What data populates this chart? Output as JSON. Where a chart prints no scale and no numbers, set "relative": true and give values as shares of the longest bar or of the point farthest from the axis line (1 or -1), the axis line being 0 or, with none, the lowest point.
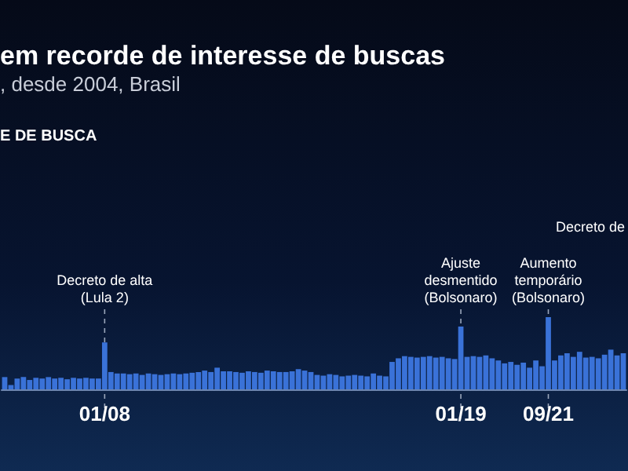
{
  "chart_data": {
    "type": "bar",
    "title": "em recorde de interesse de buscas",
    "subtitle": ", desde 2004, Brasil",
    "relative": true,
    "color": "#3a72d8",
    "grid": false,
    "categories": [
      null,
      null,
      null,
      null,
      null,
      null,
      null,
      null,
      null,
      null,
      null,
      null,
      null,
      null,
      null,
      null,
      "01/08",
      null,
      null,
      null,
      null,
      null,
      null,
      null,
      null,
      null,
      null,
      null,
      null,
      null,
      null,
      null,
      null,
      null,
      null,
      null,
      null,
      null,
      null,
      null,
      null,
      null,
      null,
      null,
      null,
      null,
      null,
      null,
      null,
      null,
      null,
      null,
      null,
      null,
      null,
      null,
      null,
      null,
      null,
      null,
      null,
      null,
      null,
      null,
      null,
      null,
      null,
      null,
      null,
      null,
      null,
      null,
      null,
      "01/19",
      null,
      null,
      null,
      null,
      null,
      null,
      null,
      null,
      null,
      null,
      null,
      null,
      null,
      "09/21",
      null,
      null,
      null,
      null,
      null,
      null,
      null,
      null,
      null,
      null,
      null,
      null
    ],
    "values": [
      0.17,
      0.06,
      0.15,
      0.17,
      0.13,
      0.16,
      0.15,
      0.17,
      0.15,
      0.16,
      0.14,
      0.16,
      0.15,
      0.16,
      0.15,
      0.15,
      0.65,
      0.24,
      0.22,
      0.22,
      0.21,
      0.22,
      0.2,
      0.22,
      0.21,
      0.2,
      0.21,
      0.22,
      0.21,
      0.22,
      0.23,
      0.24,
      0.26,
      0.24,
      0.3,
      0.25,
      0.25,
      0.24,
      0.23,
      0.25,
      0.24,
      0.23,
      0.26,
      0.25,
      0.24,
      0.24,
      0.25,
      0.28,
      0.26,
      0.24,
      0.2,
      0.19,
      0.21,
      0.2,
      0.18,
      0.19,
      0.2,
      0.19,
      0.18,
      0.22,
      0.19,
      0.18,
      0.38,
      0.43,
      0.46,
      0.45,
      0.44,
      0.45,
      0.46,
      0.44,
      0.45,
      0.43,
      0.42,
      0.87,
      0.45,
      0.46,
      0.45,
      0.47,
      0.43,
      0.4,
      0.36,
      0.38,
      0.34,
      0.37,
      0.3,
      0.4,
      0.32,
      1,
      0.4,
      0.47,
      0.5,
      0.45,
      0.52,
      0.44,
      0.45,
      0.43,
      0.48,
      0.55,
      0.47,
      0.5
    ],
    "ref_lines": [
      {
        "axis": "x",
        "value": "01/08",
        "label": "Decreto de alta\n(Lula 2)",
        "line_style": "dashed"
      },
      {
        "axis": "x",
        "value": "01/19",
        "label": "Ajuste\ndesmentido\n(Bolsonaro)",
        "line_style": "dashed"
      },
      {
        "axis": "x",
        "value": "09/21",
        "label": "Aumento\ntemporário\n(Bolsonaro)",
        "line_style": "dashed"
      }
    ],
    "annotations": [
      "E DE BUSCA",
      "Decreto de"
    ]
  }
}
